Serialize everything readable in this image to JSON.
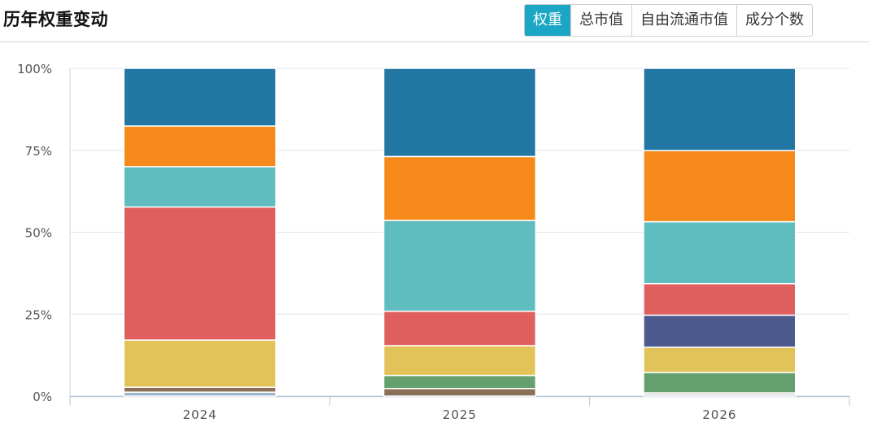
{
  "header": {
    "title": "历年权重变动",
    "tabs": [
      {
        "label": "权重",
        "active": true
      },
      {
        "label": "总市值",
        "active": false
      },
      {
        "label": "自由流通市值",
        "active": false
      },
      {
        "label": "成分个数",
        "active": false
      }
    ]
  },
  "colors": {
    "accent": "#1aa6c4",
    "series": [
      "#9db5cc",
      "#8b7058",
      "#65a06f",
      "#e2c35a",
      "#4c5a8e",
      "#df5e5e",
      "#5fbdbf",
      "#f58919",
      "#2277a3"
    ]
  },
  "chart_data": {
    "type": "bar",
    "stacked": true,
    "categories": [
      "2024",
      "2025",
      "2026"
    ],
    "ytick_labels": [
      "0%",
      "25%",
      "50%",
      "75%",
      "100%"
    ],
    "ylim": [
      0,
      100
    ],
    "grid": true,
    "series": [
      {
        "values": [
          1.2,
          0.0,
          0.5
        ]
      },
      {
        "values": [
          1.5,
          2.3,
          0.5
        ]
      },
      {
        "values": [
          0.0,
          4.0,
          6.2
        ]
      },
      {
        "values": [
          14.4,
          9.1,
          7.7
        ]
      },
      {
        "values": [
          0.0,
          0.0,
          9.8
        ]
      },
      {
        "values": [
          40.6,
          10.5,
          9.6
        ]
      },
      {
        "values": [
          12.3,
          27.7,
          18.9
        ]
      },
      {
        "values": [
          12.4,
          19.5,
          21.7
        ]
      },
      {
        "values": [
          17.6,
          26.9,
          25.1
        ]
      }
    ]
  }
}
